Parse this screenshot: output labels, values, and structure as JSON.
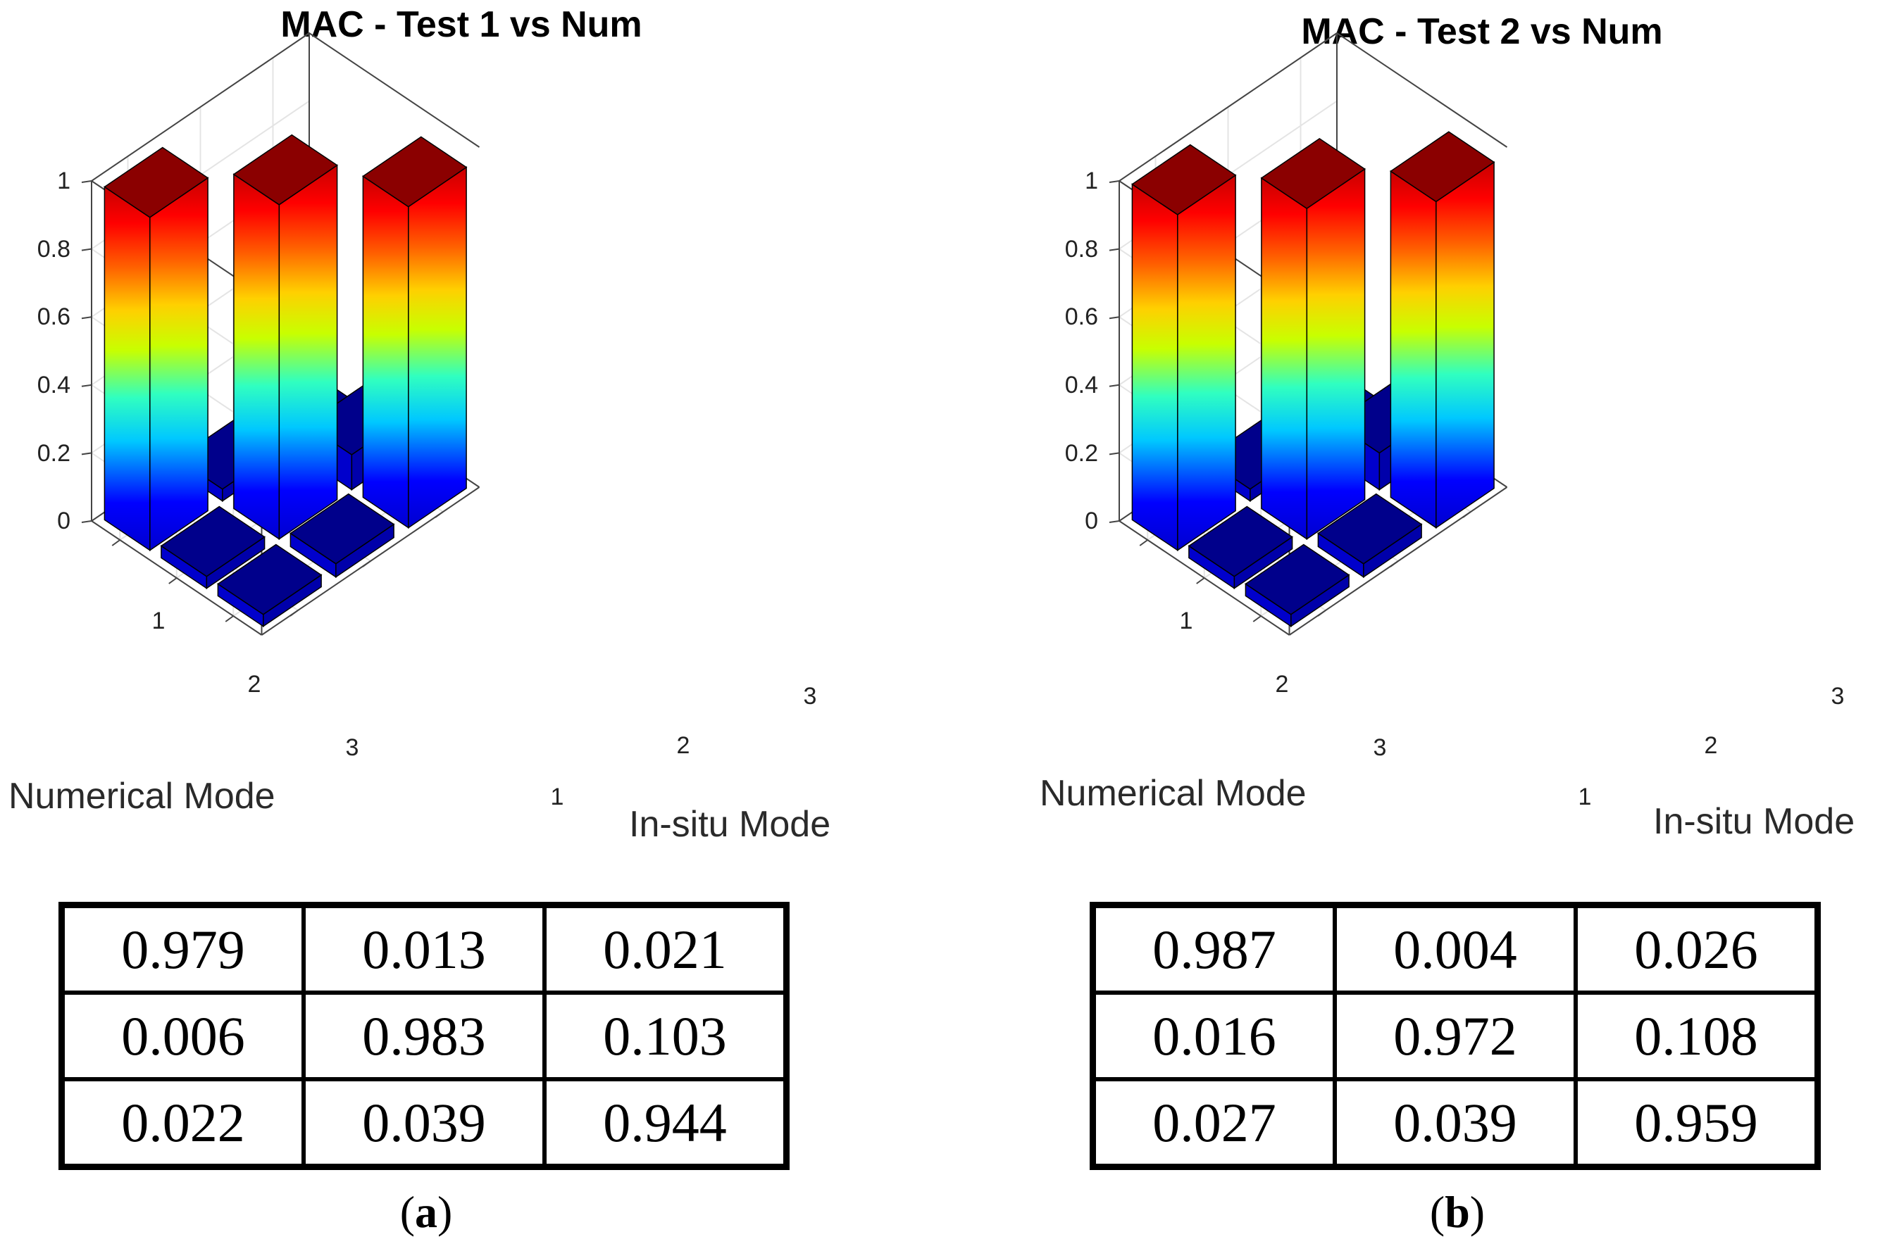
{
  "colors": {
    "bar_top": "#8b0000",
    "low_bar": "#00008b",
    "grid": "#e4e4e4",
    "axis": "#444444"
  },
  "chart_data": [
    {
      "type": "bar3d",
      "title": "MAC - Test 1 vs Num",
      "xlabel": "Numerical Mode",
      "ylabel": "In-situ Mode",
      "zlim": [
        0,
        1
      ],
      "z_ticks": [
        "0",
        "0.2",
        "0.4",
        "0.6",
        "0.8",
        "1"
      ],
      "x_ticks": [
        "1",
        "2",
        "3"
      ],
      "y_ticks": [
        "1",
        "2",
        "3"
      ],
      "matrix": [
        [
          0.979,
          0.013,
          0.021
        ],
        [
          0.006,
          0.983,
          0.103
        ],
        [
          0.022,
          0.039,
          0.944
        ]
      ],
      "table": [
        [
          "0.979",
          "0.013",
          "0.021"
        ],
        [
          "0.006",
          "0.983",
          "0.103"
        ],
        [
          "0.022",
          "0.039",
          "0.944"
        ]
      ],
      "caption_paren_open": "(",
      "caption_letter": "a",
      "caption_paren_close": ")"
    },
    {
      "type": "bar3d",
      "title": "MAC - Test 2 vs Num",
      "xlabel": "Numerical Mode",
      "ylabel": "In-situ Mode",
      "zlim": [
        0,
        1
      ],
      "z_ticks": [
        "0",
        "0.2",
        "0.4",
        "0.6",
        "0.8",
        "1"
      ],
      "x_ticks": [
        "1",
        "2",
        "3"
      ],
      "y_ticks": [
        "1",
        "2",
        "3"
      ],
      "matrix": [
        [
          0.987,
          0.004,
          0.026
        ],
        [
          0.016,
          0.972,
          0.108
        ],
        [
          0.027,
          0.039,
          0.959
        ]
      ],
      "table": [
        [
          "0.987",
          "0.004",
          "0.026"
        ],
        [
          "0.016",
          "0.972",
          "0.108"
        ],
        [
          "0.027",
          "0.039",
          "0.959"
        ]
      ],
      "caption_paren_open": "(",
      "caption_letter": "b",
      "caption_paren_close": ")"
    }
  ]
}
